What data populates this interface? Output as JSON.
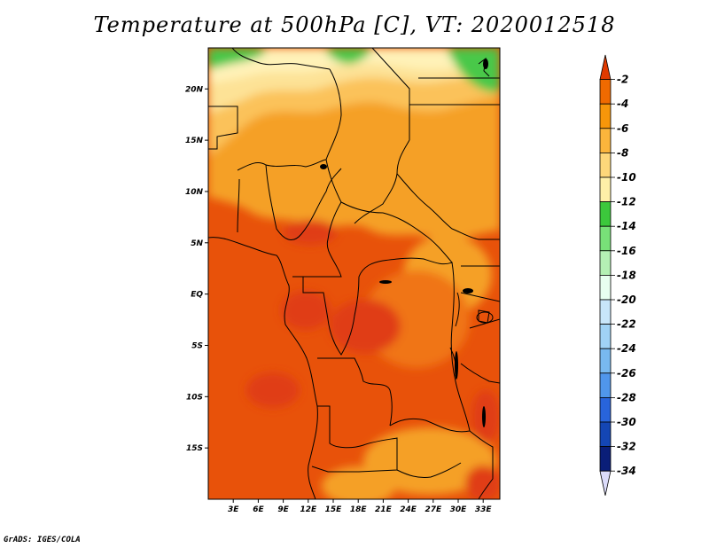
{
  "title": "Temperature at 500hPa [C], VT: 2020012518",
  "credit": "GrADS: IGES/COLA",
  "map": {
    "lat_labels": [
      "20N",
      "15N",
      "10N",
      "5N",
      "EQ",
      "5S",
      "10S",
      "15S"
    ],
    "lon_labels": [
      "3E",
      "6E",
      "9E",
      "12E",
      "15E",
      "18E",
      "21E",
      "24E",
      "27E",
      "30E",
      "33E"
    ]
  },
  "colorbar": {
    "labels": [
      "-2",
      "-4",
      "-6",
      "-8",
      "-10",
      "-12",
      "-14",
      "-16",
      "-18",
      "-20",
      "-22",
      "-24",
      "-26",
      "-28",
      "-30",
      "-32",
      "-34"
    ],
    "colors": [
      "#e03a00",
      "#f06a00",
      "#f7960a",
      "#fbb53c",
      "#fdd77a",
      "#fff0a8",
      "#3cc83c",
      "#78e078",
      "#b4f0b4",
      "#e8fff0",
      "#c8e6fa",
      "#a0d2f5",
      "#78b9f0",
      "#5096eb",
      "#2864dc",
      "#1446b4",
      "#0a1e78",
      "#dcdcfa"
    ]
  },
  "field_colors": {
    "warm_1": "#e8520a",
    "warm_2": "#f07514",
    "warm_3": "#f5a028",
    "warm_4": "#fbc25a",
    "warm_5": "#fde296",
    "warm_6": "#fff2b8",
    "cold_green": "#48c848",
    "hot_core": "#e03c14"
  },
  "chart_data": {
    "type": "heatmap",
    "title": "Temperature at 500hPa [C], VT: 2020012518",
    "variable": "Temperature at 500hPa",
    "units": "C",
    "valid_time": "2020012518",
    "lon_range": [
      0,
      35
    ],
    "lat_range": [
      -20,
      24
    ],
    "lat_ticks": [
      "20N",
      "15N",
      "10N",
      "5N",
      "EQ",
      "5S",
      "10S",
      "15S"
    ],
    "lon_ticks": [
      "3E",
      "6E",
      "9E",
      "12E",
      "15E",
      "18E",
      "21E",
      "24E",
      "27E",
      "30E",
      "33E"
    ],
    "contour_levels": [
      -2,
      -4,
      -6,
      -8,
      -10,
      -12,
      -14,
      -16,
      -18,
      -20,
      -22,
      -24,
      -26,
      -28,
      -30,
      -32,
      -34
    ]
  }
}
